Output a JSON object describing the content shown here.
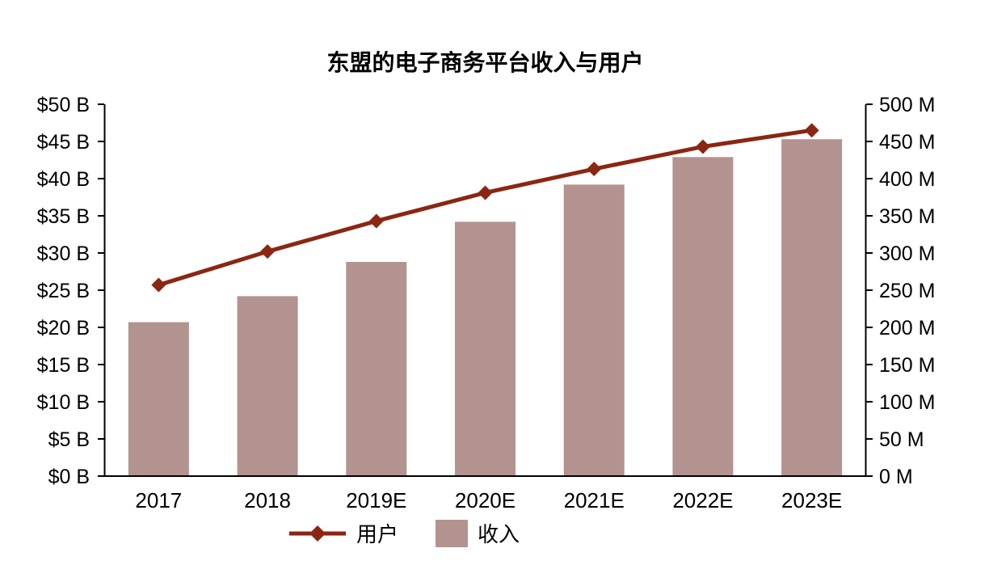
{
  "title": "东盟的电子商务平台收入与用户",
  "legend": {
    "users_label": "用户",
    "revenue_label": "收入"
  },
  "colors": {
    "line": "#8b2612",
    "bar": "#b3938f",
    "axis": "#000000",
    "text": "#000000",
    "background": "#ffffff"
  },
  "chart_data": {
    "type": "bar+line",
    "title": "东盟的电子商务平台收入与用户",
    "categories": [
      "2017",
      "2018",
      "2019E",
      "2020E",
      "2021E",
      "2022E",
      "2023E"
    ],
    "series": [
      {
        "name": "收入",
        "type": "bar",
        "axis": "left",
        "unit": "USD billions",
        "values": [
          20.7,
          24.2,
          28.8,
          34.2,
          39.2,
          42.9,
          45.3
        ]
      },
      {
        "name": "用户",
        "type": "line",
        "axis": "right",
        "unit": "millions",
        "values": [
          257,
          302,
          343,
          381,
          413,
          443,
          465
        ]
      }
    ],
    "left_axis": {
      "min": 0,
      "max": 50,
      "step": 5,
      "tick_labels": [
        "$0 B",
        "$5 B",
        "$10 B",
        "$15 B",
        "$20 B",
        "$25 B",
        "$30 B",
        "$35 B",
        "$40 B",
        "$45 B",
        "$50 B"
      ]
    },
    "right_axis": {
      "min": 0,
      "max": 500,
      "step": 50,
      "tick_labels": [
        "0 M",
        "50 M",
        "100 M",
        "150 M",
        "200 M",
        "250 M",
        "300 M",
        "350 M",
        "400 M",
        "450 M",
        "500 M"
      ]
    },
    "grid": false,
    "legend_position": "bottom"
  }
}
